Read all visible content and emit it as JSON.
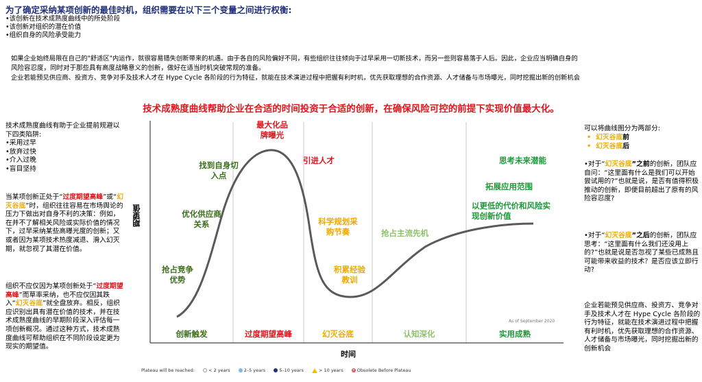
{
  "header": {
    "title": "为了确定采纳某项创新的最佳时机，组织需要在以下三个变量之间进行权衡:",
    "bullets": [
      "•该创新在技术成熟度曲线中的所处阶段",
      "•该创新对组织的潜在价值",
      "•组织自身的风险承受能力"
    ],
    "para_lines": [
      "如果企业始终局限在自己的\"舒适区\"内运作，就很容易错失创新带来的机遇。由于各自的风险偏好不同，有些组织往往倾向于过早采用一切新技术，而另一些则容易落于人后。因此，企业应当明确自身的",
      "风险容忍度，同时对于那些具有高度战略意义的创新，做好在适当时机突破常规的准备。",
      "企业若能预见供应商、投资方、竞争对手及技术人才在 Hype Cycle 各阶段的行为特征，就能在技术演进过程中把握有利时机，优先获取理想的合作资源、人才储备与市场曝光，同时挖掘出新的创新机会"
    ]
  },
  "banner": "技术成熟度曲线帮助企业在合适的时间投资于合适的创新，在确保风险可控的前提下实现价值最大化。",
  "left": {
    "block1": [
      "技术成熟度曲线有助于企业提前规避以下四类陷阱:",
      "•采用过早",
      "•放弃过快",
      "•介入过晚",
      "•盲目坚持"
    ],
    "block2": {
      "p1": "当某项创新正处于“",
      "hl1": "过度期望高峰",
      "p2": "”或“",
      "hl2": "幻灭谷底",
      "p3": "”时，组织往往容易在市场舆论的压力下做出对自身不利的决策：例如，在并不了解相关风险或实际价值的情况下，过早采纳某些高曝光度的创新；又或者因为某项技术热度减退、滑入幻灭期，就忽视了其潜在价值。"
    },
    "block3": {
      "p1": "组织不应仅因为某项创新处于“",
      "hl1": "过度期望高峰",
      "p2": "”而草率采纳，也不应仅因其跌入“",
      "hl2": "幻灭谷底",
      "p3": "”就全盘放弃。相反，组织应识别出具有潜在价值的技术，并在技术成熟度曲线的早期阶段深入评估每一项创新概况。通过这种方式，技术成熟度曲线可帮助组织在不同阶段设定更为现实的期望值。"
    }
  },
  "right": {
    "intro": "可以将曲线图分为两部分:",
    "items": [
      {
        "hl": "幻灭谷底",
        "suffix": "前"
      },
      {
        "hl": "幻灭谷底",
        "suffix": "后"
      }
    ],
    "before": {
      "p1": "•对于“",
      "hl": "幻灭谷底",
      "p2": "”之前",
      "p3": "的创新，团队应自问：“这里面有什么是我们可以开始尝试用的?”也就是说，是否有值得积极推动的创新，即便目前超出了原有的风险容忍度?"
    },
    "after": {
      "p1": "•对于“",
      "hl": "幻灭谷底",
      "p2": "”之后",
      "p3": "的创新，团队应思考：“这里面有什么我们还没用上的?”也就是说是否忽视了某些已成熟且可能带来收益的技术？是否应该立即行动?"
    },
    "bottom": "企业若能预见供应商、投资方、竞争对手及技术人才在 Hype Cycle 各阶段的行为特征，就能在技术演进过程中把握有利时机，优先获取理想的合作资源、人才储备与市场曝光，同时挖掘出新的创新机会"
  },
  "chart": {
    "ylabel": "期望值",
    "xlabel": "时间",
    "asof": "As of September 2020",
    "labels": {
      "peak": "最大化品牌曝光",
      "roi": "找到自身切入点",
      "talent": "引进人才",
      "supplier": "优化供应商关系",
      "compete": "抢占竞争优势",
      "procure": "科学规划采购节奏",
      "lessons": "积累经验教训",
      "first": "抢占主流先机",
      "future": "思考未来潜能",
      "expand": "拓展应用范围",
      "lowcost": "以更低的代价和风险实现创新价值"
    },
    "phases": [
      "创新触发",
      "过度期望高峰",
      "幻灭谷底",
      "认知深化",
      "实用成熟"
    ],
    "phase_colors": [
      "#3d6e1e",
      "#e0161c",
      "#f0a800",
      "#8dc26a",
      "#1f9a3a"
    ]
  },
  "legend": {
    "title": "Plateau will be reached:",
    "items": [
      "< 2 years",
      "2–5 years",
      "5–10 years",
      "> 10 years",
      "Obsolete Before Plateau"
    ]
  }
}
